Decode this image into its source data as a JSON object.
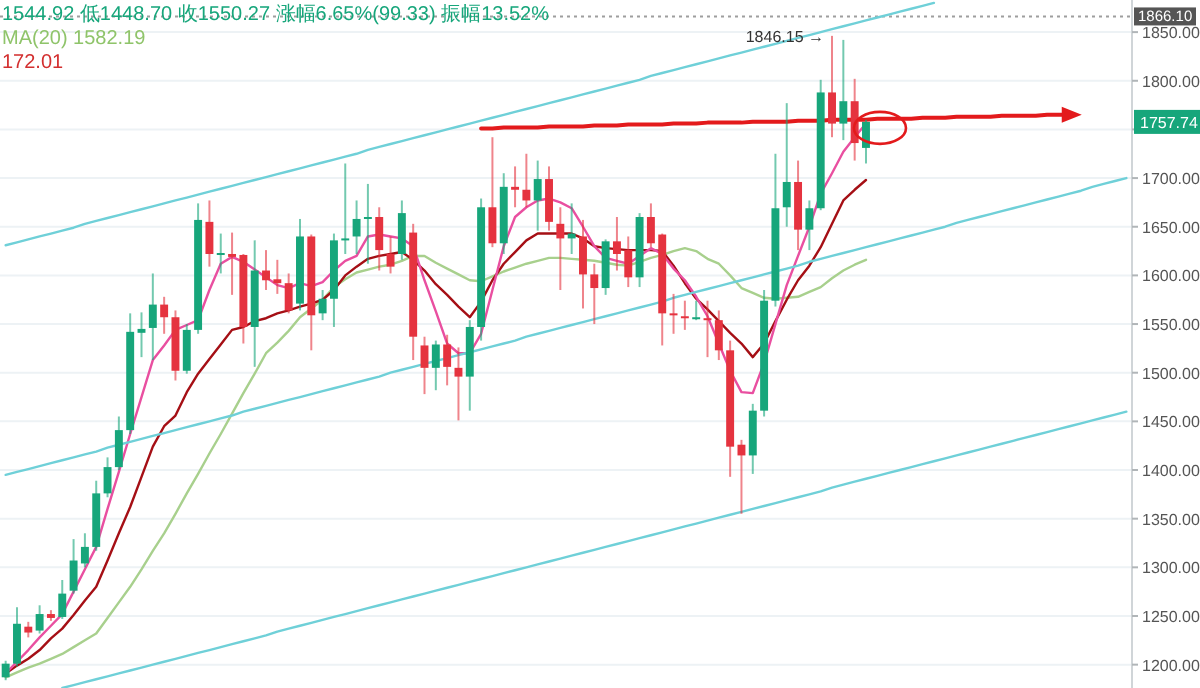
{
  "chart_data": {
    "type": "candlestick",
    "categories": [
      null,
      null,
      null,
      null,
      null,
      null,
      null,
      null,
      null,
      null,
      null,
      null,
      null,
      null,
      null,
      null,
      null,
      null,
      null,
      null,
      null,
      null,
      null,
      null,
      null,
      null,
      null,
      null,
      null,
      null,
      null,
      null,
      null,
      null,
      null,
      null,
      null,
      null,
      null,
      null,
      null,
      null,
      null,
      null,
      null,
      null,
      null,
      null,
      null,
      null,
      null,
      null,
      null,
      null,
      null,
      null,
      null,
      null,
      null,
      null,
      null,
      null,
      null,
      null,
      null,
      null,
      null,
      null,
      null,
      null,
      null,
      null,
      null,
      null,
      null,
      null,
      null,
      null,
      null,
      null,
      null,
      null,
      null,
      null,
      null,
      null,
      null,
      null,
      null,
      null,
      null,
      null,
      null,
      null,
      null,
      null,
      null,
      null,
      null,
      null
    ],
    "ohlc": [
      [
        1187,
        1204,
        1184,
        1201
      ],
      [
        1201,
        1259,
        1198,
        1242
      ],
      [
        1239,
        1244,
        1228,
        1233
      ],
      [
        1235,
        1261,
        1232,
        1252
      ],
      [
        1252,
        1256,
        1245,
        1248
      ],
      [
        1249,
        1287,
        1247,
        1273
      ],
      [
        1276,
        1329,
        1273,
        1307
      ],
      [
        1304,
        1335,
        1300,
        1321
      ],
      [
        1321,
        1389,
        1317,
        1376
      ],
      [
        1376,
        1413,
        1372,
        1403
      ],
      [
        1403,
        1455,
        1400,
        1441
      ],
      [
        1441,
        1561,
        1437,
        1542
      ],
      [
        1541,
        1562,
        1516,
        1545
      ],
      [
        1546,
        1602,
        1513,
        1570
      ],
      [
        1570,
        1578,
        1540,
        1557
      ],
      [
        1557,
        1564,
        1492,
        1502
      ],
      [
        1502,
        1550,
        1499,
        1544
      ],
      [
        1544,
        1674,
        1540,
        1657
      ],
      [
        1655,
        1677,
        1609,
        1622
      ],
      [
        1621,
        1643,
        1602,
        1623
      ],
      [
        1622,
        1644,
        1580,
        1619
      ],
      [
        1621,
        1622,
        1530,
        1547
      ],
      [
        1547,
        1636,
        1506,
        1605
      ],
      [
        1605,
        1626,
        1585,
        1595
      ],
      [
        1596,
        1616,
        1581,
        1592
      ],
      [
        1592,
        1602,
        1561,
        1564
      ],
      [
        1571,
        1658,
        1564,
        1640
      ],
      [
        1640,
        1642,
        1523,
        1559
      ],
      [
        1561,
        1585,
        1554,
        1576
      ],
      [
        1576,
        1643,
        1547,
        1636
      ],
      [
        1637,
        1715,
        1622,
        1638
      ],
      [
        1640,
        1677,
        1622,
        1658
      ],
      [
        1658,
        1694,
        1612,
        1660
      ],
      [
        1660,
        1670,
        1605,
        1626
      ],
      [
        1622,
        1640,
        1602,
        1609
      ],
      [
        1622,
        1677,
        1616,
        1664
      ],
      [
        1644,
        1653,
        1513,
        1537
      ],
      [
        1528,
        1537,
        1478,
        1505
      ],
      [
        1505,
        1533,
        1482,
        1529
      ],
      [
        1529,
        1539,
        1487,
        1506
      ],
      [
        1505,
        1526,
        1451,
        1496
      ],
      [
        1496,
        1554,
        1461,
        1547
      ],
      [
        1547,
        1679,
        1533,
        1670
      ],
      [
        1670,
        1742,
        1629,
        1633
      ],
      [
        1633,
        1705,
        1622,
        1691
      ],
      [
        1691,
        1712,
        1670,
        1688
      ],
      [
        1688,
        1725,
        1670,
        1677
      ],
      [
        1677,
        1718,
        1646,
        1699
      ],
      [
        1699,
        1712,
        1646,
        1655
      ],
      [
        1653,
        1670,
        1585,
        1638
      ],
      [
        1638,
        1674,
        1622,
        1643
      ],
      [
        1640,
        1657,
        1566,
        1601
      ],
      [
        1601,
        1612,
        1550,
        1587
      ],
      [
        1587,
        1637,
        1580,
        1635
      ],
      [
        1635,
        1660,
        1605,
        1622
      ],
      [
        1626,
        1640,
        1588,
        1598
      ],
      [
        1598,
        1664,
        1588,
        1660
      ],
      [
        1660,
        1674,
        1629,
        1633
      ],
      [
        1642,
        1643,
        1528,
        1561
      ],
      [
        1561,
        1581,
        1540,
        1559
      ],
      [
        1558,
        1574,
        1544,
        1557
      ],
      [
        1556,
        1574,
        1554,
        1557
      ],
      [
        1556,
        1574,
        1516,
        1554
      ],
      [
        1554,
        1564,
        1513,
        1523
      ],
      [
        1523,
        1533,
        1393,
        1424
      ],
      [
        1426,
        1431,
        1355,
        1415
      ],
      [
        1415,
        1468,
        1396,
        1461
      ],
      [
        1461,
        1585,
        1455,
        1574
      ],
      [
        1574,
        1725,
        1568,
        1669
      ],
      [
        1670,
        1777,
        1650,
        1696
      ],
      [
        1696,
        1718,
        1626,
        1647
      ],
      [
        1647,
        1677,
        1626,
        1669
      ],
      [
        1669,
        1801,
        1667,
        1788
      ],
      [
        1788,
        1846.15,
        1742,
        1756
      ],
      [
        1756,
        1842,
        1739,
        1779
      ],
      [
        1779,
        1802,
        1718,
        1736
      ],
      [
        1731,
        1760,
        1715,
        1757.74
      ],
      null,
      null,
      null,
      null,
      null,
      null,
      null,
      null,
      null,
      null,
      null,
      null,
      null,
      null,
      null,
      null,
      null,
      null,
      null,
      null,
      null,
      null,
      null
    ],
    "colors": [
      "#17a67b",
      "#17a67b",
      "#e5333f",
      "#17a67b",
      "#e5333f",
      "#17a67b",
      "#17a67b",
      "#17a67b",
      "#17a67b",
      "#17a67b",
      "#17a67b",
      "#17a67b",
      "#17a67b",
      "#17a67b",
      "#e5333f",
      "#e5333f",
      "#17a67b",
      "#17a67b",
      "#e5333f",
      "#17a67b",
      "#e5333f",
      "#e5333f",
      "#17a67b",
      "#e5333f",
      "#e5333f",
      "#e5333f",
      "#17a67b",
      "#e5333f",
      "#17a67b",
      "#17a67b",
      "#17a67b",
      "#17a67b",
      "#17a67b",
      "#e5333f",
      "#e5333f",
      "#17a67b",
      "#e5333f",
      "#e5333f",
      "#17a67b",
      "#e5333f",
      "#e5333f",
      "#17a67b",
      "#17a67b",
      "#e5333f",
      "#17a67b",
      "#e5333f",
      "#e5333f",
      "#17a67b",
      "#e5333f",
      "#e5333f",
      "#17a67b",
      "#e5333f",
      "#e5333f",
      "#17a67b",
      "#e5333f",
      "#e5333f",
      "#17a67b",
      "#e5333f",
      "#e5333f",
      "#e5333f",
      "#e5333f",
      "#17a67b",
      "#e5333f",
      "#e5333f",
      "#e5333f",
      "#e5333f",
      "#17a67b",
      "#17a67b",
      "#17a67b",
      "#17a67b",
      "#e5333f",
      "#17a67b",
      "#17a67b",
      "#e5333f",
      "#17a67b",
      "#e5333f",
      "#17a67b",
      null,
      null,
      null,
      null,
      null,
      null,
      null,
      null,
      null,
      null,
      null,
      null,
      null,
      null,
      null,
      null,
      null,
      null,
      null,
      null,
      null,
      null,
      null
    ],
    "series": [
      {
        "type": "line",
        "color": "#a8d08d",
        "values": [
          1187,
          1192,
          1197,
          1201,
          1206,
          1211,
          1218,
          1225,
          1232,
          1248,
          1264,
          1280,
          1298,
          1317,
          1335,
          1355,
          1376,
          1396,
          1417,
          1437,
          1458,
          1479,
          1499,
          1520,
          1531,
          1543,
          1557,
          1566,
          1575,
          1588,
          1596,
          1603,
          1606,
          1609,
          1611,
          1615,
          1620,
          1620,
          1613,
          1607,
          1601,
          1595,
          1594,
          1599,
          1604,
          1608,
          1612,
          1615,
          1618,
          1618,
          1617,
          1616,
          1615,
          1613,
          1611,
          1610,
          1614,
          1618,
          1621,
          1625,
          1628,
          1625,
          1617,
          1612,
          1600,
          1587,
          1582,
          1577,
          1576,
          1577,
          1578,
          1583,
          1588,
          1597,
          1605,
          1611,
          1616,
          null,
          null,
          null,
          null,
          null,
          null,
          null,
          null,
          null,
          null,
          null,
          null,
          null,
          null,
          null,
          null,
          null,
          null,
          null,
          null,
          null,
          null,
          null
        ]
      },
      {
        "type": "line",
        "color": "#a50f15",
        "values": [
          1191,
          1199,
          1206,
          1215,
          1227,
          1237,
          1251,
          1266,
          1280,
          1307,
          1335,
          1362,
          1393,
          1424,
          1445,
          1456,
          1480,
          1499,
          1514,
          1529,
          1544,
          1547,
          1553,
          1556,
          1561,
          1564,
          1568,
          1571,
          1575,
          1585,
          1600,
          1609,
          1617,
          1620,
          1622,
          1624,
          1616,
          1605,
          1591,
          1580,
          1568,
          1557,
          1573,
          1595,
          1612,
          1624,
          1636,
          1643,
          1643,
          1643,
          1643,
          1638,
          1630,
          1628,
          1627,
          1626,
          1626,
          1626,
          1625,
          1610,
          1592,
          1576,
          1565,
          1553,
          1541,
          1530,
          1516,
          1530,
          1553,
          1575,
          1595,
          1610,
          1629,
          1653,
          1677,
          1688,
          1698,
          null,
          null,
          null,
          null,
          null,
          null,
          null,
          null,
          null,
          null,
          null,
          null,
          null,
          null,
          null,
          null,
          null,
          null,
          null,
          null,
          null,
          null,
          null
        ]
      },
      {
        "type": "line",
        "color": "#e94fa0",
        "values": [
          1191,
          1203,
          1215,
          1228,
          1240,
          1252,
          1275,
          1298,
          1321,
          1360,
          1398,
          1437,
          1475,
          1513,
          1528,
          1544,
          1549,
          1554,
          1585,
          1612,
          1619,
          1614,
          1606,
          1598,
          1590,
          1587,
          1592,
          1589,
          1593,
          1605,
          1615,
          1620,
          1640,
          1642,
          1640,
          1638,
          1630,
          1595,
          1563,
          1530,
          1520,
          1520,
          1540,
          1585,
          1630,
          1660,
          1670,
          1677,
          1679,
          1675,
          1669,
          1650,
          1630,
          1618,
          1615,
          1612,
          1620,
          1628,
          1622,
          1607,
          1595,
          1578,
          1558,
          1530,
          1502,
          1480,
          1479,
          1510,
          1550,
          1590,
          1620,
          1650,
          1684,
          1705,
          1727,
          1742,
          1756,
          null,
          null,
          null,
          null,
          null,
          null,
          null,
          null,
          null,
          null,
          null,
          null,
          null,
          null,
          null,
          null,
          null,
          null,
          null,
          null,
          null,
          null,
          null
        ]
      },
      {
        "type": "line",
        "color": "#6fd0d8",
        "values": [
          1631,
          1634,
          1637,
          1640,
          1643,
          1646,
          1649,
          1653,
          1656,
          1659,
          1662,
          1665,
          1668,
          1671,
          1674,
          1677,
          1680,
          1683,
          1686,
          1689,
          1692,
          1695,
          1698,
          1701,
          1704,
          1707,
          1710,
          1713,
          1716,
          1719,
          1722,
          1725,
          1729,
          1732,
          1735,
          1738,
          1741,
          1744,
          1747,
          1750,
          1753,
          1756,
          1759,
          1762,
          1765,
          1768,
          1771,
          1774,
          1777,
          1780,
          1783,
          1786,
          1789,
          1792,
          1795,
          1798,
          1801,
          1805,
          1808,
          1811,
          1814,
          1817,
          1820,
          1823,
          1826,
          1829,
          1832,
          1835,
          1838,
          1841,
          1844,
          1847,
          1850,
          1853,
          1856,
          1859,
          1862,
          1865,
          1868,
          1871,
          1874,
          1877,
          1880,
          null,
          null,
          null,
          null,
          null,
          null,
          null,
          null,
          null,
          null,
          null,
          null,
          null,
          null,
          null,
          null,
          null
        ]
      },
      {
        "type": "line",
        "color": "#6fd0d8",
        "values": [
          1395,
          1398,
          1401,
          1404,
          1407,
          1410,
          1413,
          1416,
          1419,
          1423,
          1426,
          1429,
          1432,
          1435,
          1438,
          1441,
          1444,
          1447,
          1450,
          1453,
          1456,
          1460,
          1463,
          1466,
          1469,
          1472,
          1475,
          1478,
          1481,
          1484,
          1487,
          1490,
          1493,
          1496,
          1500,
          1503,
          1506,
          1509,
          1512,
          1515,
          1518,
          1521,
          1524,
          1527,
          1530,
          1533,
          1537,
          1540,
          1543,
          1546,
          1549,
          1552,
          1555,
          1558,
          1561,
          1564,
          1567,
          1570,
          1573,
          1577,
          1580,
          1583,
          1586,
          1589,
          1592,
          1595,
          1598,
          1601,
          1604,
          1607,
          1610,
          1614,
          1617,
          1620,
          1623,
          1626,
          1629,
          1632,
          1635,
          1638,
          1641,
          1644,
          1647,
          1650,
          1654,
          1657,
          1660,
          1663,
          1666,
          1669,
          1672,
          1675,
          1678,
          1681,
          1684,
          1687,
          1691,
          1694,
          1697,
          1700
        ]
      },
      {
        "type": "line",
        "color": "#6fd0d8",
        "values": [
          null,
          null,
          null,
          null,
          null,
          1176,
          1179,
          1182,
          1185,
          1188,
          1191,
          1194,
          1197,
          1200,
          1203,
          1206,
          1209,
          1212,
          1215,
          1218,
          1221,
          1224,
          1227,
          1230,
          1234,
          1237,
          1240,
          1243,
          1246,
          1249,
          1252,
          1255,
          1258,
          1261,
          1264,
          1267,
          1270,
          1273,
          1276,
          1279,
          1282,
          1285,
          1288,
          1291,
          1294,
          1297,
          1300,
          1303,
          1306,
          1309,
          1312,
          1315,
          1318,
          1321,
          1324,
          1327,
          1330,
          1333,
          1336,
          1339,
          1342,
          1345,
          1348,
          1351,
          1354,
          1357,
          1360,
          1363,
          1366,
          1369,
          1372,
          1375,
          1378,
          1382,
          1385,
          1388,
          1391,
          1394,
          1397,
          1400,
          1403,
          1406,
          1409,
          1412,
          1415,
          1418,
          1421,
          1424,
          1427,
          1430,
          1433,
          1436,
          1439,
          1442,
          1445,
          1448,
          1451,
          1454,
          1457,
          1460
        ]
      },
      {
        "type": "line",
        "color": "#e31a1c",
        "values": [
          null,
          null,
          null,
          null,
          null,
          null,
          null,
          null,
          null,
          null,
          null,
          null,
          null,
          null,
          null,
          null,
          null,
          null,
          null,
          null,
          null,
          null,
          null,
          null,
          null,
          null,
          null,
          null,
          null,
          null,
          null,
          null,
          null,
          null,
          null,
          null,
          null,
          null,
          null,
          null,
          null,
          null,
          1751,
          1751,
          1752,
          1752,
          1752,
          1752,
          1753,
          1753,
          1753,
          1753,
          1754,
          1754,
          1754,
          1755,
          1755,
          1755,
          1755,
          1756,
          1756,
          1756,
          1757,
          1757,
          1757,
          1757,
          1758,
          1758,
          1758,
          1758,
          1759,
          1759,
          1759,
          1760,
          1760,
          1760,
          1760,
          1761,
          1761,
          1761,
          1761,
          1762,
          1762,
          1762,
          1763,
          1763,
          1763,
          1763,
          1764,
          1764,
          1764,
          1764,
          1765,
          1765,
          1765,
          null,
          null,
          null,
          null,
          null
        ]
      }
    ],
    "ylim": [
      1176,
      1883
    ],
    "yticks": [
      {
        "value": 1200,
        "label": "1200.00"
      },
      {
        "value": 1250,
        "label": "1250.00"
      },
      {
        "value": 1300,
        "label": "1300.00"
      },
      {
        "value": 1350,
        "label": "1350.00"
      },
      {
        "value": 1400,
        "label": "1400.00"
      },
      {
        "value": 1450,
        "label": "1450.00"
      },
      {
        "value": 1500,
        "label": "1500.00"
      },
      {
        "value": 1550,
        "label": "1550.00"
      },
      {
        "value": 1600,
        "label": "1600.00"
      },
      {
        "value": 1650,
        "label": "1650.00"
      },
      {
        "value": 1700,
        "label": "1700.00"
      },
      {
        "value": 1750,
        "label": null
      },
      {
        "value": 1800,
        "label": "1800.00"
      },
      {
        "value": 1850,
        "label": "1850.00"
      }
    ],
    "grid": "y",
    "tick_labels": "y",
    "ref_lines": [
      {
        "axis": "y",
        "value": 1866.1,
        "label": "1866.10",
        "color": "#9e9e9e",
        "line_style": "dotted"
      }
    ],
    "annotations": [
      "1544.92 低1448.70 收1550.27 涨幅6.65%(99.33) 振幅13.52%",
      "MA(20) 1582.19",
      "172.01",
      {
        "text": "1846.15 →",
        "y": 1846.15
      },
      {
        "text": "1757.74",
        "y": 1757.74
      }
    ]
  }
}
